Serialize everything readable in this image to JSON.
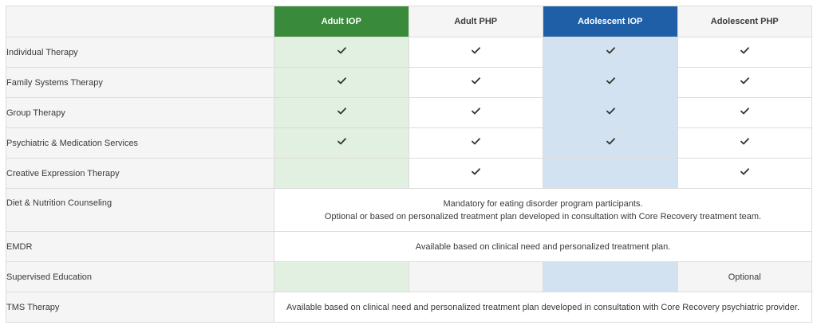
{
  "columns": [
    "Adult IOP",
    "Adult PHP",
    "Adolescent IOP",
    "Adolescent PHP"
  ],
  "rows": [
    {
      "label": "Individual Therapy",
      "cells": [
        true,
        true,
        true,
        true
      ]
    },
    {
      "label": "Family Systems Therapy",
      "cells": [
        true,
        true,
        true,
        true
      ]
    },
    {
      "label": "Group Therapy",
      "cells": [
        true,
        true,
        true,
        true
      ]
    },
    {
      "label": "Psychiatric & Medication Services",
      "cells": [
        true,
        true,
        true,
        true
      ]
    },
    {
      "label": "Creative Expression Therapy",
      "cells": [
        false,
        true,
        false,
        true
      ]
    },
    {
      "label": "Diet & Nutrition Counseling",
      "span_text": [
        "Mandatory for eating disorder program participants.",
        "Optional or based on personalized treatment plan developed in consultation with Core Recovery treatment team."
      ]
    },
    {
      "label": "EMDR",
      "span_text": [
        "Available based on clinical need and personalized treatment plan."
      ]
    },
    {
      "label": "Supervised Education",
      "cells": [
        "",
        "",
        "",
        "Optional"
      ]
    },
    {
      "label": "TMS Therapy",
      "span_text": [
        "Available based on clinical need and personalized treatment plan developed in consultation with Core Recovery psychiatric provider."
      ]
    }
  ],
  "colors": {
    "adult_iop_header": "#3a8a3c",
    "adult_iop_cell": "#e2f0e1",
    "adolescent_iop_header": "#1f5fa8",
    "adolescent_iop_cell": "#d3e2f0"
  },
  "icons": {
    "check": "check-icon"
  }
}
